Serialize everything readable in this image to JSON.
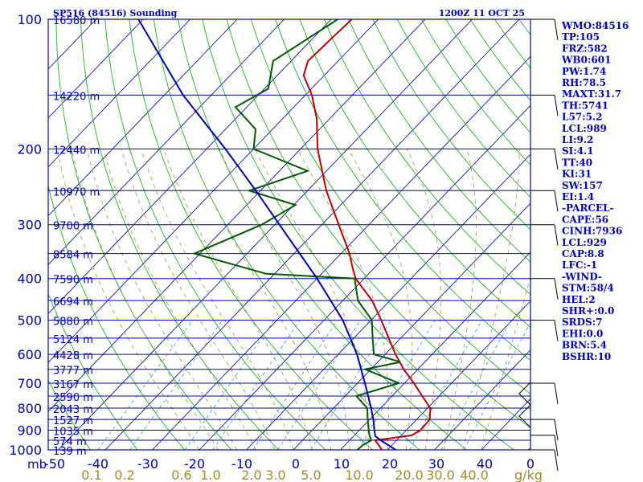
{
  "header": {
    "station": "SP516 (84516) Sounding",
    "time": "1200Z 11 OCT 25"
  },
  "colors": {
    "frame": "#0000b4",
    "isotherm": "#1010a0",
    "dry_adiabat": "#20b020",
    "moist_adiabat": "#b09a60",
    "mixing_ratio": "#40a8d0",
    "temperature": "#c00000",
    "dewpoint": "#005a00",
    "parcel": "#0000b4"
  },
  "chart_data": {
    "type": "line",
    "title": "SP516 (84516) Sounding",
    "subtitle": "1200Z 11 OCT 25",
    "xlabel": "",
    "ylabel": "mb",
    "x_ticks": [
      "-50",
      "-40",
      "-30",
      "-20",
      "-10",
      "0",
      "10",
      "20",
      "30",
      "40",
      "0"
    ],
    "y_ticks": [
      {
        "p": 100,
        "label": "100"
      },
      {
        "p": 200,
        "label": "200"
      },
      {
        "p": 300,
        "label": "300"
      },
      {
        "p": 400,
        "label": "400"
      },
      {
        "p": 500,
        "label": "500"
      },
      {
        "p": 600,
        "label": "600"
      },
      {
        "p": 700,
        "label": "700"
      },
      {
        "p": 800,
        "label": "800"
      },
      {
        "p": 900,
        "label": "900"
      },
      {
        "p": 1000,
        "label": "1000"
      }
    ],
    "mixing_ratio_labels": [
      "0.1",
      "0.2",
      "0.6",
      "1.0",
      "2.0",
      "3.0",
      "5.0",
      "10.0",
      "20.0",
      "30.0",
      "40.0"
    ],
    "mixing_ratio_unit": "g/kg",
    "heights": [
      {
        "p": 100,
        "label": "16580 m"
      },
      {
        "p": 150,
        "label": "14220 m"
      },
      {
        "p": 200,
        "label": "12440 m"
      },
      {
        "p": 250,
        "label": "10970 m"
      },
      {
        "p": 300,
        "label": "9700 m"
      },
      {
        "p": 350,
        "label": "8584 m"
      },
      {
        "p": 400,
        "label": "7590 m"
      },
      {
        "p": 450,
        "label": "6694 m"
      },
      {
        "p": 500,
        "label": "5880 m"
      },
      {
        "p": 550,
        "label": "5124 m"
      },
      {
        "p": 600,
        "label": "4428 m"
      },
      {
        "p": 650,
        "label": "3777 m"
      },
      {
        "p": 700,
        "label": "3167 m"
      },
      {
        "p": 750,
        "label": "2590 m"
      },
      {
        "p": 800,
        "label": "2043 m"
      },
      {
        "p": 850,
        "label": "1527 m"
      },
      {
        "p": 900,
        "label": "1035 m"
      },
      {
        "p": 950,
        "label": "574 m"
      },
      {
        "p": 1000,
        "label": "139 m"
      }
    ],
    "series": [
      {
        "name": "",
        "kind": "temperature",
        "points": [
          {
            "p": 1000,
            "t": 18.8
          },
          {
            "p": 975,
            "t": 17.2
          },
          {
            "p": 950,
            "t": 15.4
          },
          {
            "p": 925,
            "t": 22.2
          },
          {
            "p": 900,
            "t": 23.0
          },
          {
            "p": 850,
            "t": 22.8
          },
          {
            "p": 800,
            "t": 20.6
          },
          {
            "p": 750,
            "t": 16.4
          },
          {
            "p": 700,
            "t": 12.0
          },
          {
            "p": 650,
            "t": 7.0
          },
          {
            "p": 600,
            "t": 2.2
          },
          {
            "p": 550,
            "t": -2.6
          },
          {
            "p": 500,
            "t": -7.8
          },
          {
            "p": 450,
            "t": -13.8
          },
          {
            "p": 400,
            "t": -21.8
          },
          {
            "p": 375,
            "t": -25.0
          },
          {
            "p": 350,
            "t": -28.2
          },
          {
            "p": 300,
            "t": -36.4
          },
          {
            "p": 250,
            "t": -46.0
          },
          {
            "p": 200,
            "t": -56.4
          },
          {
            "p": 170,
            "t": -62.8
          },
          {
            "p": 150,
            "t": -68.6
          },
          {
            "p": 135,
            "t": -74.4
          },
          {
            "p": 125,
            "t": -76.4
          },
          {
            "p": 110,
            "t": -76.0
          },
          {
            "p": 100,
            "t": -75.6
          }
        ]
      },
      {
        "name": "",
        "kind": "dewpoint",
        "points": [
          {
            "p": 1000,
            "t": 13.6
          },
          {
            "p": 975,
            "t": 13.8
          },
          {
            "p": 950,
            "t": 14.6
          },
          {
            "p": 925,
            "t": 13.2
          },
          {
            "p": 900,
            "t": 12.0
          },
          {
            "p": 850,
            "t": 9.6
          },
          {
            "p": 800,
            "t": 7.2
          },
          {
            "p": 750,
            "t": 2.4
          },
          {
            "p": 700,
            "t": 8.8
          },
          {
            "p": 650,
            "t": -1.2
          },
          {
            "p": 625,
            "t": 4.8
          },
          {
            "p": 600,
            "t": -2.4
          },
          {
            "p": 550,
            "t": -6.0
          },
          {
            "p": 500,
            "t": -9.8
          },
          {
            "p": 450,
            "t": -16.8
          },
          {
            "p": 400,
            "t": -22.0
          },
          {
            "p": 390,
            "t": -41.8
          },
          {
            "p": 350,
            "t": -61.2
          },
          {
            "p": 300,
            "t": -52.8
          },
          {
            "p": 270,
            "t": -49.6
          },
          {
            "p": 250,
            "t": -62.4
          },
          {
            "p": 225,
            "t": -54.0
          },
          {
            "p": 200,
            "t": -70.0
          },
          {
            "p": 180,
            "t": -73.6
          },
          {
            "p": 160,
            "t": -82.4
          },
          {
            "p": 145,
            "t": -79.2
          },
          {
            "p": 125,
            "t": -83.8
          },
          {
            "p": 100,
            "t": -78.6
          }
        ]
      },
      {
        "name": "",
        "kind": "parcel",
        "points": [
          {
            "p": 1000,
            "t": 21.8
          },
          {
            "p": 950,
            "t": 16.6
          },
          {
            "p": 929,
            "t": 14.6
          },
          {
            "p": 900,
            "t": 13.2
          },
          {
            "p": 850,
            "t": 10.8
          },
          {
            "p": 800,
            "t": 8.0
          },
          {
            "p": 700,
            "t": 1.6
          },
          {
            "p": 600,
            "t": -6.0
          },
          {
            "p": 500,
            "t": -16.0
          },
          {
            "p": 400,
            "t": -30.0
          },
          {
            "p": 300,
            "t": -49.0
          },
          {
            "p": 250,
            "t": -61.0
          },
          {
            "p": 200,
            "t": -76.0
          },
          {
            "p": 150,
            "t": -96.0
          },
          {
            "p": 100,
            "t": -121.0
          }
        ]
      }
    ],
    "wind_barbs": [
      {
        "p": 100
      },
      {
        "p": 150
      },
      {
        "p": 200
      },
      {
        "p": 250
      },
      {
        "p": 300
      },
      {
        "p": 400
      },
      {
        "p": 500
      },
      {
        "p": 700
      },
      {
        "p": 850
      },
      {
        "p": 925
      },
      {
        "p": 1000
      }
    ],
    "ylim": [
      100,
      1000
    ],
    "xlim": [
      -50,
      50
    ]
  },
  "indices": [
    {
      "label": "WMO:84516"
    },
    {
      "label": "TP:105"
    },
    {
      "label": "FRZ:582"
    },
    {
      "label": "WB0:601"
    },
    {
      "label": "PW:1.74"
    },
    {
      "label": "RH:78.5"
    },
    {
      "label": "MAXT:31.7"
    },
    {
      "label": "TH:5741"
    },
    {
      "label": "L57:5.2"
    },
    {
      "label": "LCL:989"
    },
    {
      "label": "LI:9.2"
    },
    {
      "label": "SI:4.1"
    },
    {
      "label": "TT:40"
    },
    {
      "label": "KI:31"
    },
    {
      "label": "SW:157"
    },
    {
      "label": "EI:1.4"
    },
    {
      "label": "-PARCEL-"
    },
    {
      "label": "CAPE:56"
    },
    {
      "label": "CINH:7936"
    },
    {
      "label": "LCL:929"
    },
    {
      "label": "CAP:8.8"
    },
    {
      "label": "LFC:-1"
    },
    {
      "label": "-WIND-"
    },
    {
      "label": "STM:58/4"
    },
    {
      "label": "HEL:2"
    },
    {
      "label": "SHR+:0.0"
    },
    {
      "label": "SRDS:7"
    },
    {
      "label": "EHI:0.0"
    },
    {
      "label": "BRN:5.4"
    },
    {
      "label": "BSHR:10"
    }
  ]
}
